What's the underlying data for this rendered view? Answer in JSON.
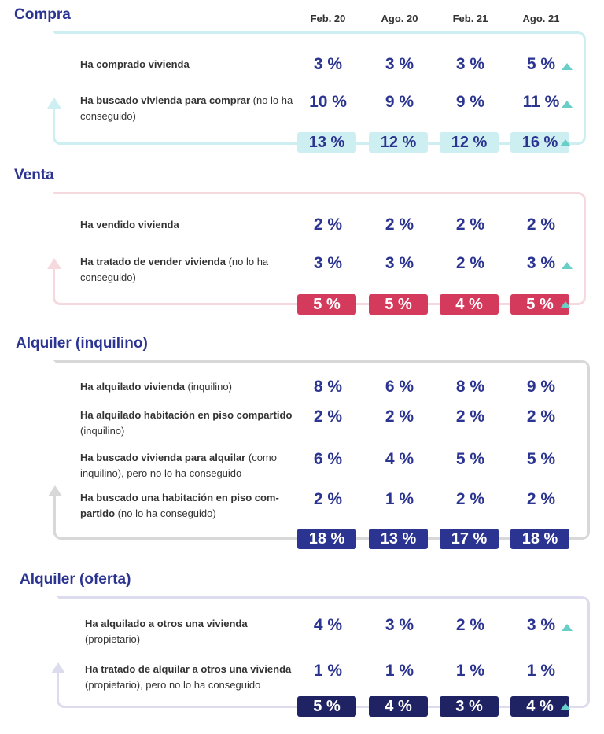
{
  "chart_data": {
    "type": "table",
    "columns": [
      "Feb. 20",
      "Ago. 20",
      "Feb. 21",
      "Ago. 21"
    ],
    "sections": [
      {
        "title": "Compra",
        "frame_color": "#cdeff1",
        "total_bg": "#cdeff1",
        "total_color": "#2b3490",
        "rows": [
          {
            "label_bold": "Ha comprado vivienda",
            "label_rest": "",
            "values": [
              "3 %",
              "3 %",
              "3 %",
              "5 %"
            ],
            "up": [
              false,
              false,
              false,
              true
            ]
          },
          {
            "label_bold": "Ha buscado vivienda para comprar",
            "label_rest": " (no lo ha conseguido)",
            "values": [
              "10 %",
              "9 %",
              "9 %",
              "11 %"
            ],
            "up": [
              false,
              false,
              false,
              true
            ]
          }
        ],
        "totals": [
          "13 %",
          "12 %",
          "12 %",
          "16 %"
        ],
        "totals_up": [
          false,
          false,
          false,
          true
        ]
      },
      {
        "title": "Venta",
        "frame_color": "#f6d9df",
        "total_bg": "#d43a5c",
        "total_color": "#ffffff",
        "rows": [
          {
            "label_bold": "Ha vendido vivienda",
            "label_rest": "",
            "values": [
              "2 %",
              "2 %",
              "2 %",
              "2 %"
            ],
            "up": [
              false,
              false,
              false,
              false
            ]
          },
          {
            "label_bold": "Ha tratado de vender vivienda",
            "label_rest": " (no lo ha conseguido)",
            "values": [
              "3 %",
              "3 %",
              "2 %",
              "3 %"
            ],
            "up": [
              false,
              false,
              false,
              true
            ]
          }
        ],
        "totals": [
          "5 %",
          "5 %",
          "4 %",
          "5 %"
        ],
        "totals_up": [
          false,
          false,
          false,
          true
        ]
      },
      {
        "title": "Alquiler (inquilino)",
        "frame_color": "#d8d8d8",
        "total_bg": "#2b3490",
        "total_color": "#ffffff",
        "rows": [
          {
            "label_bold": "Ha alquilado vivienda",
            "label_rest": " (inquilino)",
            "values": [
              "8 %",
              "6 %",
              "8 %",
              "9 %"
            ],
            "up": [
              false,
              false,
              false,
              false
            ]
          },
          {
            "label_bold": "Ha alquilado habitación en piso compartido",
            "label_rest": " (inquilino)",
            "values": [
              "2 %",
              "2 %",
              "2 %",
              "2 %"
            ],
            "up": [
              false,
              false,
              false,
              false
            ]
          },
          {
            "label_bold": "Ha buscado vivienda para alquilar",
            "label_rest": " (como inquilino), pero no lo ha conseguido",
            "values": [
              "6 %",
              "4 %",
              "5 %",
              "5 %"
            ],
            "up": [
              false,
              false,
              false,
              false
            ]
          },
          {
            "label_bold": "Ha buscado una habitación en piso com-partido",
            "label_rest": " (no lo ha conseguido)",
            "values": [
              "2 %",
              "1 %",
              "2 %",
              "2 %"
            ],
            "up": [
              false,
              false,
              false,
              false
            ]
          }
        ],
        "totals": [
          "18 %",
          "13 %",
          "17 %",
          "18 %"
        ],
        "totals_up": [
          false,
          false,
          false,
          false
        ]
      },
      {
        "title": "Alquiler (oferta)",
        "frame_color": "#dcdcee",
        "total_bg": "#1f2364",
        "total_color": "#ffffff",
        "rows": [
          {
            "label_bold": "Ha alquilado a otros una vivienda",
            "label_rest": " (propietario)",
            "values": [
              "4 %",
              "3 %",
              "2 %",
              "3 %"
            ],
            "up": [
              false,
              false,
              false,
              true
            ]
          },
          {
            "label_bold": "Ha tratado de alquilar a otros una vivienda",
            "label_rest": " (propietario), pero no lo ha conseguido",
            "values": [
              "1 %",
              "1 %",
              "1 %",
              "1 %"
            ],
            "up": [
              false,
              false,
              false,
              false
            ]
          }
        ],
        "totals": [
          "5 %",
          "4 %",
          "3 %",
          "4 %"
        ],
        "totals_up": [
          false,
          false,
          false,
          true
        ]
      }
    ],
    "up_marker_color": "#67cfc8"
  }
}
